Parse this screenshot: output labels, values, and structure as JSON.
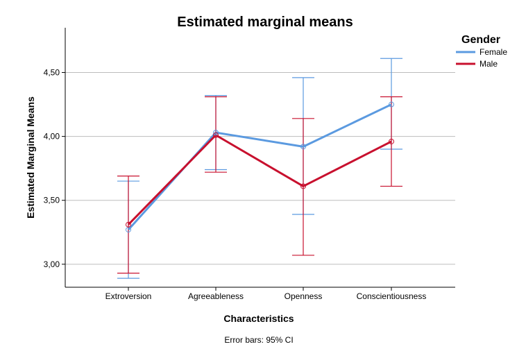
{
  "chart_data": {
    "type": "line",
    "title": "Estimated marginal means",
    "xlabel": "Characteristics",
    "ylabel": "Estimated Marginal Means",
    "categories": [
      "Extroversion",
      "Agreeableness",
      "Openness",
      "Conscientiousness"
    ],
    "ylim": [
      2.82,
      4.85
    ],
    "yticks": [
      3.0,
      3.5,
      4.0,
      4.5
    ],
    "ytick_labels": [
      "3,00",
      "3,50",
      "4,00",
      "4,50"
    ],
    "grid": true,
    "legend": {
      "title": "Gender",
      "placement": "top-right"
    },
    "footnote": "Error bars: 95% CI",
    "series": [
      {
        "name": "Female",
        "color": "#5b9ae0",
        "values": [
          3.27,
          4.03,
          3.92,
          4.25
        ],
        "ci_low": [
          2.89,
          3.74,
          3.39,
          3.9
        ],
        "ci_high": [
          3.65,
          4.32,
          4.46,
          4.61
        ]
      },
      {
        "name": "Male",
        "color": "#c8102e",
        "values": [
          3.31,
          4.01,
          3.61,
          3.96
        ],
        "ci_low": [
          2.93,
          3.72,
          3.07,
          3.61
        ],
        "ci_high": [
          3.69,
          4.31,
          4.14,
          4.31
        ]
      }
    ]
  }
}
